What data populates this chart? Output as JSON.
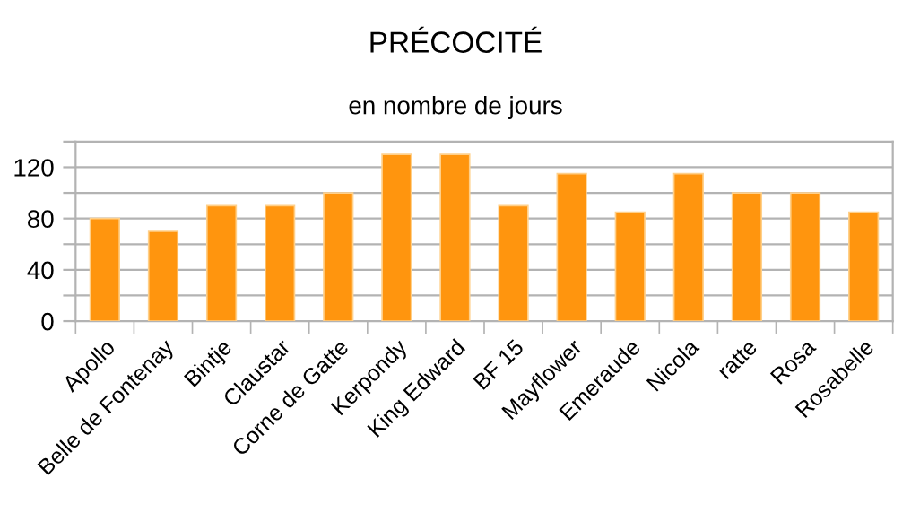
{
  "chart_data": {
    "type": "bar",
    "title": "PRÉCOCITÉ",
    "subtitle": "en nombre de jours",
    "categories": [
      "Apollo",
      "Belle de Fontenay",
      "Bintje",
      "Claustar",
      "Corne de Gatte",
      "Kerpondy",
      "King Edward",
      "BF 15",
      "Mayflower",
      "Emeraude",
      "Nicola",
      "ratte",
      "Rosa",
      "Rosabelle"
    ],
    "values": [
      80,
      70,
      90,
      90,
      100,
      130,
      130,
      90,
      115,
      85,
      115,
      100,
      100,
      85
    ],
    "color": "#ff950e",
    "ylim": [
      0,
      140
    ],
    "yticks": [
      0,
      {
        "value": 20,
        "label": null
      },
      40,
      {
        "value": 60,
        "label": null
      },
      80,
      {
        "value": 100,
        "label": null
      },
      120,
      {
        "value": 140,
        "label": null
      }
    ],
    "grid": "y",
    "legend": false
  }
}
